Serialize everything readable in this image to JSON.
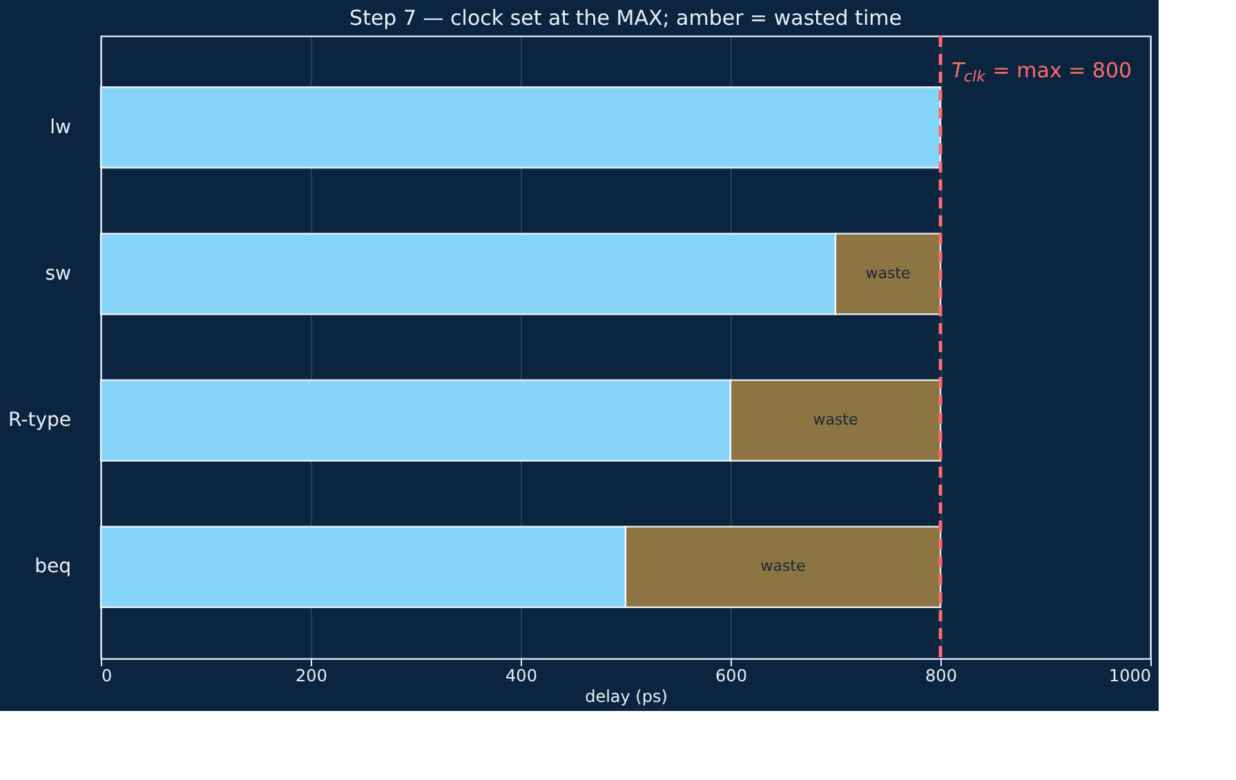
{
  "chart_data": {
    "type": "bar",
    "orientation": "horizontal",
    "stacked": true,
    "title": "Step 7 — clock set at the MAX; amber = wasted time",
    "xlabel": "delay (ps)",
    "categories": [
      "lw",
      "sw",
      "R-type",
      "beq"
    ],
    "series": [
      {
        "color": "#87d4fa",
        "values": [
          800,
          700,
          600,
          500
        ]
      },
      {
        "color": "#8c7443",
        "values": [
          0,
          100,
          200,
          300
        ],
        "value_labels": [
          null,
          "waste",
          "waste",
          "waste"
        ]
      }
    ],
    "xlim": [
      0,
      1000
    ],
    "xticks": [
      0,
      200,
      400,
      600,
      800,
      1000
    ],
    "grid": "x",
    "ref_lines": [
      {
        "axis": "x",
        "value": 800,
        "label": "T$_{clk}$ = max = 800",
        "color": "#ff6b6b",
        "line_style": "dashed"
      }
    ]
  }
}
